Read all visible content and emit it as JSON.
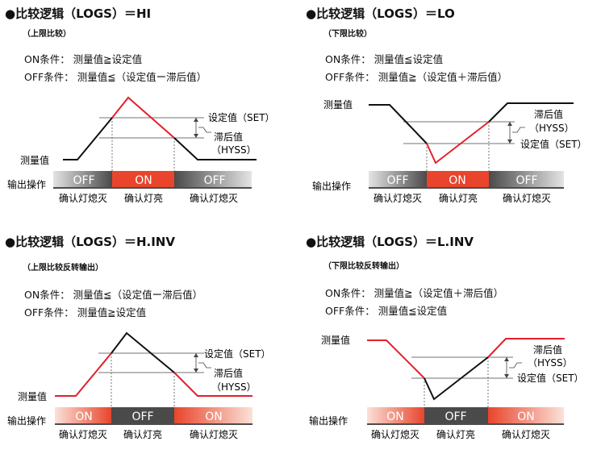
{
  "panels": [
    {
      "title": "●比较逻辑（LOGS）＝HI",
      "subtitle": "（上限比较）",
      "on_condition": "ON条件： 测量值≧设定值",
      "off_condition": "OFF条件： 测量值≦（设定值ー滞后值）",
      "labels": {
        "measured": "测量值",
        "output": "输出操作",
        "set": "设定值（SET）",
        "hyss1": "滞后值",
        "hyss2": "（HYSS）",
        "seg1": "OFF",
        "seg2": "ON",
        "seg3": "OFF",
        "confirm1": "确认灯熄灭",
        "confirm2": "确认灯亮",
        "confirm3": "确认灯熄灭"
      },
      "colors": {
        "seg1": "gray",
        "seg2": "red",
        "seg3": "gray",
        "peak": "#e3202c"
      }
    },
    {
      "title": "●比较逻辑（LOGS）＝LO",
      "subtitle": "（下限比较）",
      "on_condition": "ON条件： 测量值≦设定值",
      "off_condition": "OFF条件： 测量值≧（设定值＋滞后值）",
      "labels": {
        "measured": "测量值",
        "output": "输出操作",
        "set": "设定值（SET）",
        "hyss1": "滞后值",
        "hyss2": "（HYSS）",
        "seg1": "OFF",
        "seg2": "ON",
        "seg3": "OFF",
        "confirm1": "确认灯熄灭",
        "confirm2": "确认灯亮",
        "confirm3": "确认灯熄灭"
      },
      "colors": {
        "seg1": "gray",
        "seg2": "red",
        "seg3": "gray",
        "peak": "#e3202c"
      }
    },
    {
      "title": "●比较逻辑（LOGS）＝H.INV",
      "subtitle": "（上限比较反转输出）",
      "on_condition": "ON条件： 测量值≦（设定值ー滞后值）",
      "off_condition": "OFF条件： 测量值≧设定值",
      "labels": {
        "measured": "测量值",
        "output": "输出操作",
        "set": "设定值（SET）",
        "hyss1": "滞后值",
        "hyss2": "（HYSS）",
        "seg1": "ON",
        "seg2": "OFF",
        "seg3": "ON",
        "confirm1": "确认灯熄灭",
        "confirm2": "确认灯亮",
        "confirm3": "确认灯熄灭"
      },
      "colors": {
        "seg1": "red",
        "seg2": "gray",
        "seg3": "red",
        "peak": "#e3202c"
      }
    },
    {
      "title": "●比较逻辑（LOGS）＝L.INV",
      "subtitle": "（下限比较反转输出）",
      "on_condition": "ON条件： 测量值≧（设定值＋滞后值）",
      "off_condition": "OFF条件： 测量值≦设定值",
      "labels": {
        "measured": "测量值",
        "output": "输出操作",
        "set": "设定值（SET）",
        "hyss1": "滞后值",
        "hyss2": "（HYSS）",
        "seg1": "ON",
        "seg2": "OFF",
        "seg3": "ON",
        "confirm1": "确认灯熄灭",
        "confirm2": "确认灯亮",
        "confirm3": "确认灯熄灭"
      },
      "colors": {
        "seg1": "red",
        "seg2": "gray",
        "seg3": "red",
        "peak": "#e3202c"
      }
    }
  ]
}
